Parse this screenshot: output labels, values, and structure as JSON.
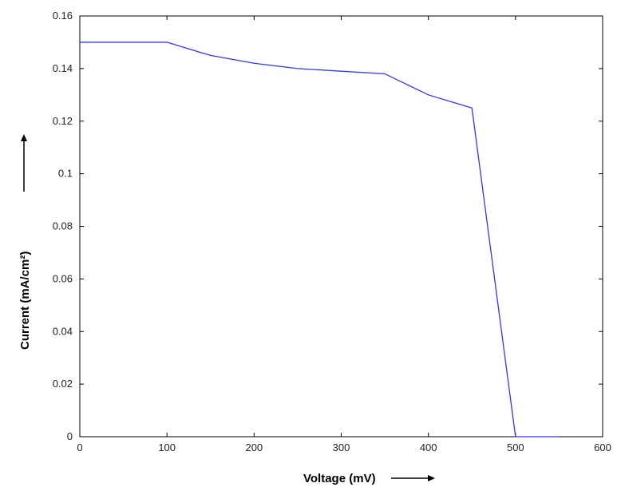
{
  "chart_data": {
    "type": "line",
    "title": "",
    "xlabel": "Voltage (mV)",
    "ylabel": "Current (mA/cm²)",
    "xlim": [
      0,
      600
    ],
    "ylim": [
      0,
      0.16
    ],
    "x_ticks": [
      0,
      100,
      200,
      300,
      400,
      500,
      600
    ],
    "y_ticks": [
      0,
      0.02,
      0.04,
      0.06,
      0.08,
      0.1,
      0.12,
      0.14,
      0.16
    ],
    "x_tick_labels": [
      "0",
      "100",
      "200",
      "300",
      "400",
      "500",
      "600"
    ],
    "y_tick_labels": [
      "0",
      "0.02",
      "0.04",
      "0.06",
      "0.08",
      "0.1",
      "0.12",
      "0.14",
      "0.16"
    ],
    "grid": false,
    "legend": "none",
    "series": [
      {
        "color": "#3333ff",
        "x": [
          0,
          100,
          150,
          200,
          250,
          300,
          350,
          400,
          450,
          500,
          550
        ],
        "y": [
          0.15,
          0.15,
          0.145,
          0.142,
          0.14,
          0.139,
          0.138,
          0.13,
          0.125,
          0.0,
          0.0
        ]
      }
    ]
  }
}
